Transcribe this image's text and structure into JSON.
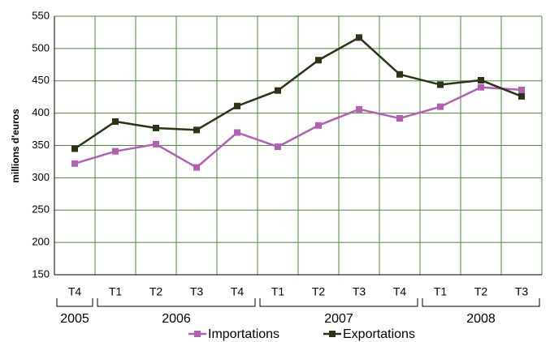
{
  "chart_data": {
    "type": "line",
    "y_label": "millions d'euros",
    "categories": [
      "T4",
      "T1",
      "T2",
      "T3",
      "T4",
      "T1",
      "T2",
      "T3",
      "T4",
      "T1",
      "T2",
      "T3"
    ],
    "x_groups": [
      {
        "label": "2005",
        "count": 1
      },
      {
        "label": "2006",
        "count": 4
      },
      {
        "label": "2007",
        "count": 4
      },
      {
        "label": "2008",
        "count": 3
      }
    ],
    "series": [
      {
        "name": "Importations",
        "color": "#b35fb3",
        "values": [
          322,
          341,
          352,
          316,
          370,
          348,
          381,
          406,
          392,
          410,
          440,
          436
        ]
      },
      {
        "name": "Exportations",
        "color": "#2e3317",
        "values": [
          345,
          387,
          377,
          374,
          411,
          435,
          482,
          517,
          460,
          444,
          451,
          426
        ]
      }
    ],
    "ylim": [
      150,
      550
    ],
    "yticks": [
      150,
      200,
      250,
      300,
      350,
      400,
      450,
      500,
      550
    ],
    "grid": true
  }
}
